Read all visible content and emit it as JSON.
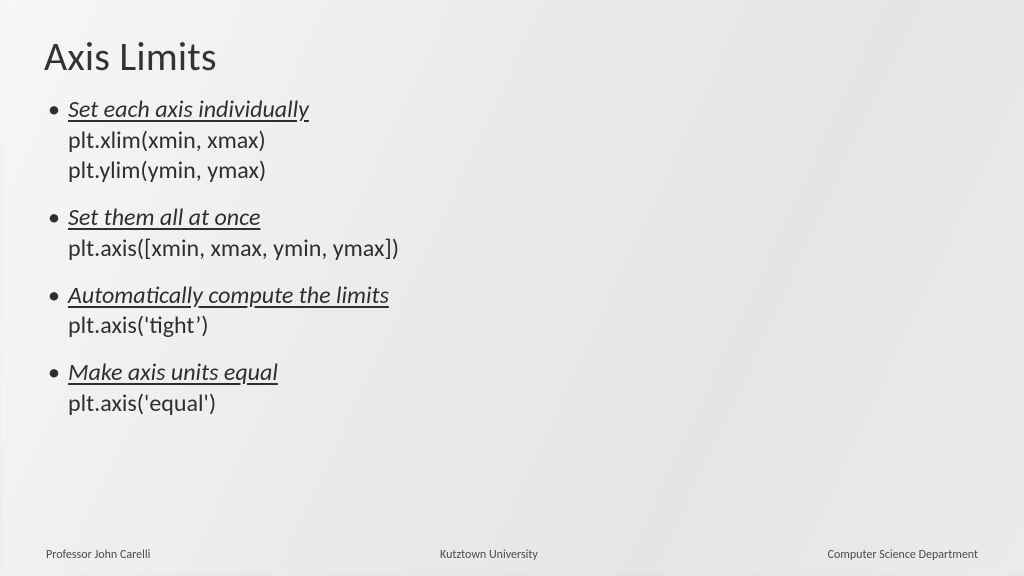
{
  "slide": {
    "title": "Axis Limits",
    "title_fontsize": 40,
    "title_color": "#333333",
    "body_fontsize": 24,
    "body_color": "#2f2f2f",
    "background_color": "#ebebeb",
    "bullets": [
      {
        "heading": "Set each axis individually",
        "lines": [
          "plt.xlim(xmin, xmax)",
          "plt.ylim(ymin, ymax)"
        ]
      },
      {
        "heading": "Set them all at once",
        "lines": [
          "plt.axis([xmin, xmax, ymin, ymax])"
        ]
      },
      {
        "heading": "Automatically compute the limits",
        "lines": [
          "plt.axis('tight’)"
        ]
      },
      {
        "heading": "Make axis units equal",
        "lines": [
          "plt.axis('equal')"
        ]
      }
    ]
  },
  "footer": {
    "left": "Professor John Carelli",
    "center": "Kutztown University",
    "right": "Computer Science Department",
    "fontsize": 12,
    "color": "#4a4a4a"
  }
}
